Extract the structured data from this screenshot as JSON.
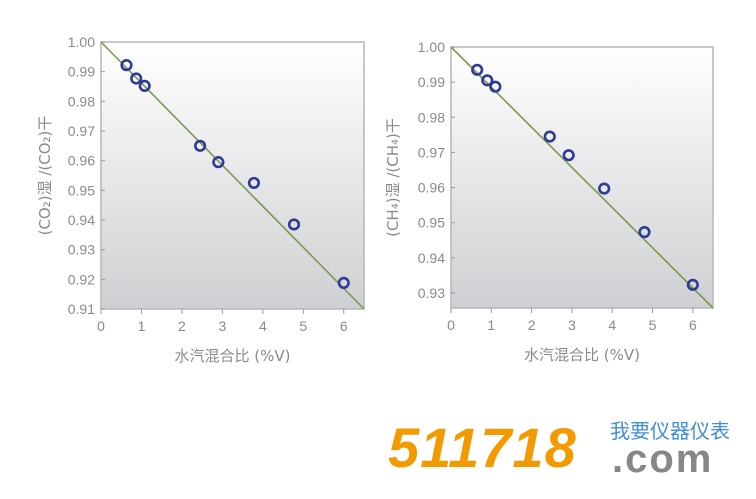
{
  "chart_data": [
    {
      "type": "scatter",
      "ylabel": "(CO₂)湿 /(CO₂)干",
      "xlabel": "水汽混合比 (%V)",
      "xlim": [
        0,
        6.5
      ],
      "ylim": [
        0.91,
        1.0
      ],
      "xticks": [
        "0",
        "1",
        "2",
        "3",
        "4",
        "5",
        "6"
      ],
      "yticks": [
        "0.91",
        "0.92",
        "0.93",
        "0.94",
        "0.95",
        "0.96",
        "0.97",
        "0.98",
        "0.99",
        "1.00"
      ],
      "grid": false,
      "points": [
        [
          0.63,
          0.9922
        ],
        [
          0.87,
          0.9877
        ],
        [
          1.08,
          0.9852
        ],
        [
          2.45,
          0.965
        ],
        [
          2.9,
          0.9595
        ],
        [
          3.78,
          0.9525
        ],
        [
          4.77,
          0.9385
        ],
        [
          6.0,
          0.9188
        ]
      ],
      "fit_line": [
        [
          0,
          1.0
        ],
        [
          6.5,
          0.91
        ]
      ],
      "marker_color": "#2e3a94",
      "line_color": "#7a9a50"
    },
    {
      "type": "scatter",
      "ylabel": "(CH₄)湿 /(CH₄)干",
      "xlabel": "水汽混合比 (%V)",
      "xlim": [
        0,
        6.5
      ],
      "ylim": [
        0.9257,
        1.0
      ],
      "xticks": [
        "0",
        "1",
        "2",
        "3",
        "4",
        "5",
        "6"
      ],
      "yticks": [
        "0.93",
        "0.94",
        "0.95",
        "0.96",
        "0.97",
        "0.98",
        "0.99",
        "1.00"
      ],
      "grid": false,
      "points": [
        [
          0.65,
          0.9935
        ],
        [
          0.9,
          0.9905
        ],
        [
          1.1,
          0.9887
        ],
        [
          2.45,
          0.9745
        ],
        [
          2.92,
          0.9692
        ],
        [
          3.8,
          0.9597
        ],
        [
          4.8,
          0.9473
        ],
        [
          6.0,
          0.9323
        ]
      ],
      "fit_line": [
        [
          0,
          1.0
        ],
        [
          6.5,
          0.9257
        ]
      ],
      "marker_color": "#2e3a94",
      "line_color": "#7a9a50"
    }
  ],
  "logo": {
    "number": "511718",
    "domain": ".com",
    "slogan": "我要仪器仪表",
    "orange": "#f39a00",
    "blue": "#3f8fd8",
    "gray": "#878787"
  }
}
